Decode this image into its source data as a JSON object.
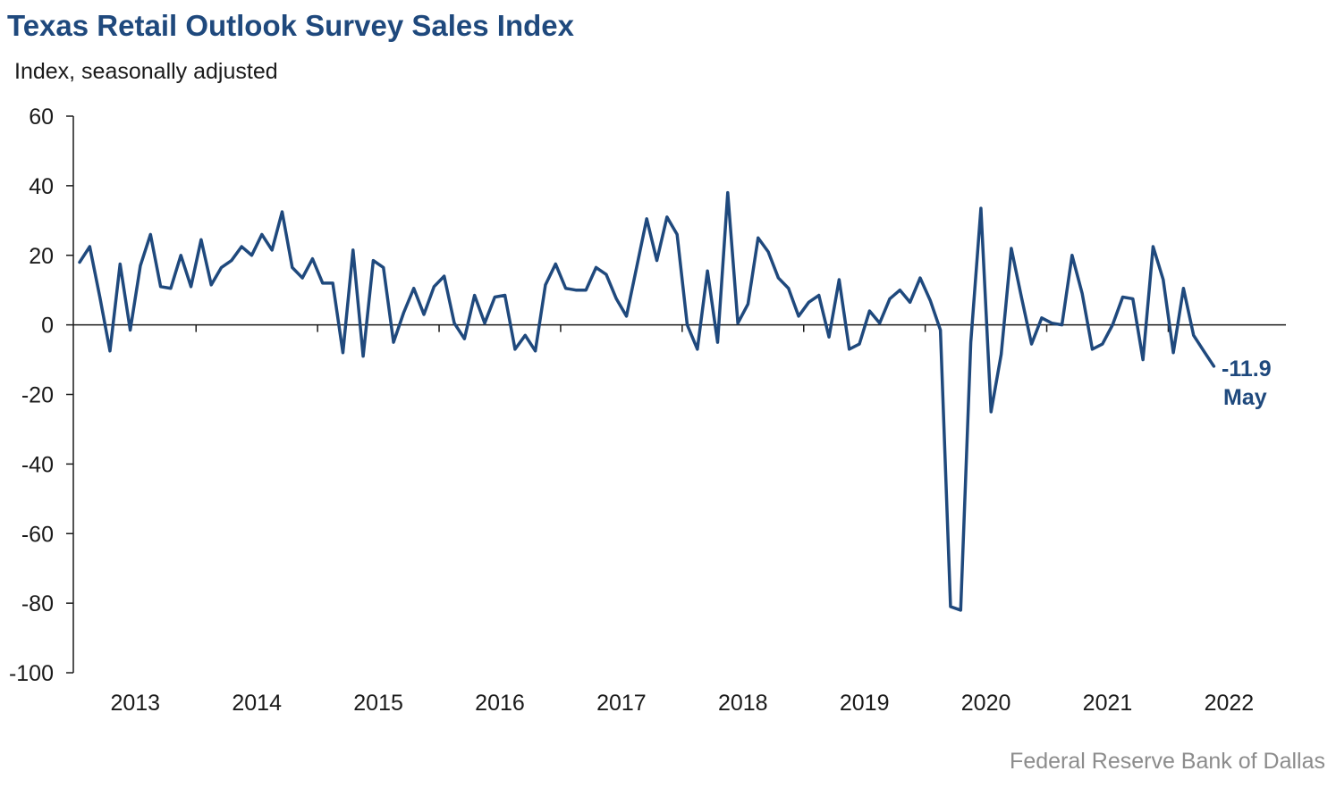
{
  "title": "Texas Retail Outlook Survey Sales Index",
  "subtitle": "Index, seasonally adjusted",
  "source": "Federal Reserve Bank of Dallas",
  "annotation": {
    "value": "-11.9",
    "month": "May"
  },
  "colors": {
    "line": "#1f497d",
    "axis": "#1a1a1a",
    "title": "#1f497d",
    "source": "#8c8c8c"
  },
  "chart_data": {
    "type": "line",
    "title": "Texas Retail Outlook Survey Sales Index",
    "ylabel": "Index, seasonally adjusted",
    "xlabel": "",
    "ylim": [
      -100,
      60
    ],
    "yticks": [
      60,
      40,
      20,
      0,
      -20,
      -40,
      -60,
      -80,
      -100
    ],
    "xticks": [
      "2013",
      "2014",
      "2015",
      "2016",
      "2017",
      "2018",
      "2019",
      "2020",
      "2021",
      "2022"
    ],
    "x_start": "2013-01",
    "x_end": "2022-05",
    "grid": false,
    "legend": "none",
    "series": [
      {
        "values": [
          18,
          22.5,
          8,
          -7.5,
          17.5,
          -1.5,
          17,
          26,
          11,
          10.5,
          20,
          11,
          24.5,
          11.5,
          16.5,
          18.5,
          22.5,
          20,
          26,
          21.5,
          32.5,
          16.5,
          13.5,
          19,
          12,
          12,
          -8,
          21.5,
          -9,
          18.5,
          16.5,
          -5,
          3.5,
          10.5,
          3,
          11,
          14,
          0.5,
          -4,
          8.5,
          0.5,
          8,
          8.5,
          -7,
          -3,
          -7.5,
          11.5,
          17.5,
          10.5,
          10,
          10,
          16.5,
          14.5,
          7.5,
          2.5,
          16.5,
          30.5,
          18.5,
          31,
          26,
          0,
          -7,
          15.5,
          -5,
          38,
          0.5,
          6,
          25,
          21,
          13.5,
          10.5,
          2.5,
          6.5,
          8.5,
          -3.5,
          13,
          -7,
          -5.5,
          4,
          0.5,
          7.5,
          10,
          6.5,
          13.5,
          7,
          -1.5,
          -81,
          -82,
          -5,
          33.5,
          -25,
          -8.5,
          22,
          8,
          -5.5,
          2,
          0.5,
          0,
          20,
          9,
          -7,
          -5.5,
          0,
          8,
          7.5,
          -10,
          22.5,
          13,
          -8,
          10.5,
          -3,
          -7.5,
          -11.9
        ]
      }
    ]
  }
}
